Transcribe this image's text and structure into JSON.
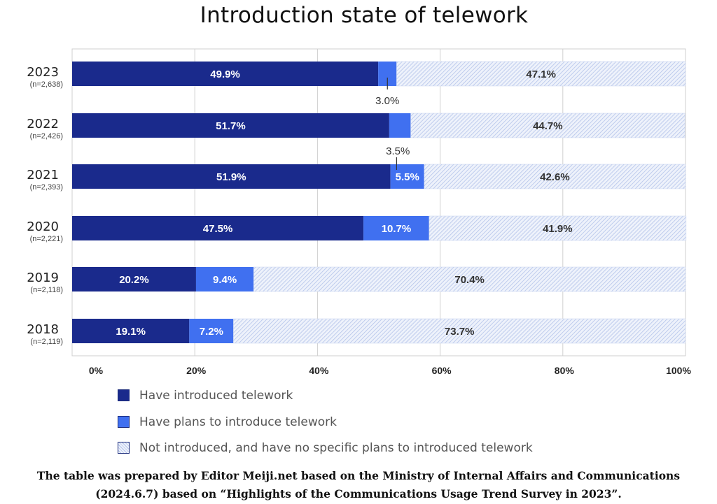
{
  "chart_data": {
    "type": "bar",
    "orientation": "horizontal",
    "stacked": true,
    "title": "Introduction state of telework",
    "categories": [
      "2023",
      "2022",
      "2021",
      "2020",
      "2019",
      "2018"
    ],
    "sample_sizes": [
      "(n=2,638)",
      "(n=2,426)",
      "(n=2,393)",
      "(n=2,221)",
      "(n=2,118)",
      "(n=2,119)"
    ],
    "series": [
      {
        "name": "Have introduced telework",
        "color": "#1a2a8c",
        "values": [
          49.9,
          51.7,
          51.9,
          47.5,
          20.2,
          19.1
        ],
        "labels": [
          "49.9%",
          "51.7%",
          "51.9%",
          "47.5%",
          "20.2%",
          "19.1%"
        ]
      },
      {
        "name": "Have plans to introduce telework",
        "color": "#4070f0",
        "values": [
          3.0,
          3.5,
          5.5,
          10.7,
          9.4,
          7.2
        ],
        "labels": [
          "3.0%",
          "3.5%",
          "5.5%",
          "10.7%",
          "9.4%",
          "7.2%"
        ]
      },
      {
        "name": "Not introduced, and have no specific plans to introduced telework",
        "color": "#e8eefa",
        "pattern": "diagonal-hatch",
        "values": [
          47.1,
          44.7,
          42.6,
          41.9,
          70.4,
          73.7
        ],
        "labels": [
          "47.1%",
          "44.7%",
          "42.6%",
          "41.9%",
          "70.4%",
          "73.7%"
        ]
      }
    ],
    "x_ticks": [
      "0%",
      "20%",
      "40%",
      "60%",
      "80%",
      "100%"
    ],
    "xlim": [
      0,
      100
    ],
    "grid": true,
    "legend_position": "bottom"
  },
  "source_note": [
    "The table was prepared by Editor Meiji.net based on the Ministry of Internal Affairs and Communications",
    "(2024.6.7) based on “Highlights of the Communications Usage Trend Survey in 2023”."
  ]
}
